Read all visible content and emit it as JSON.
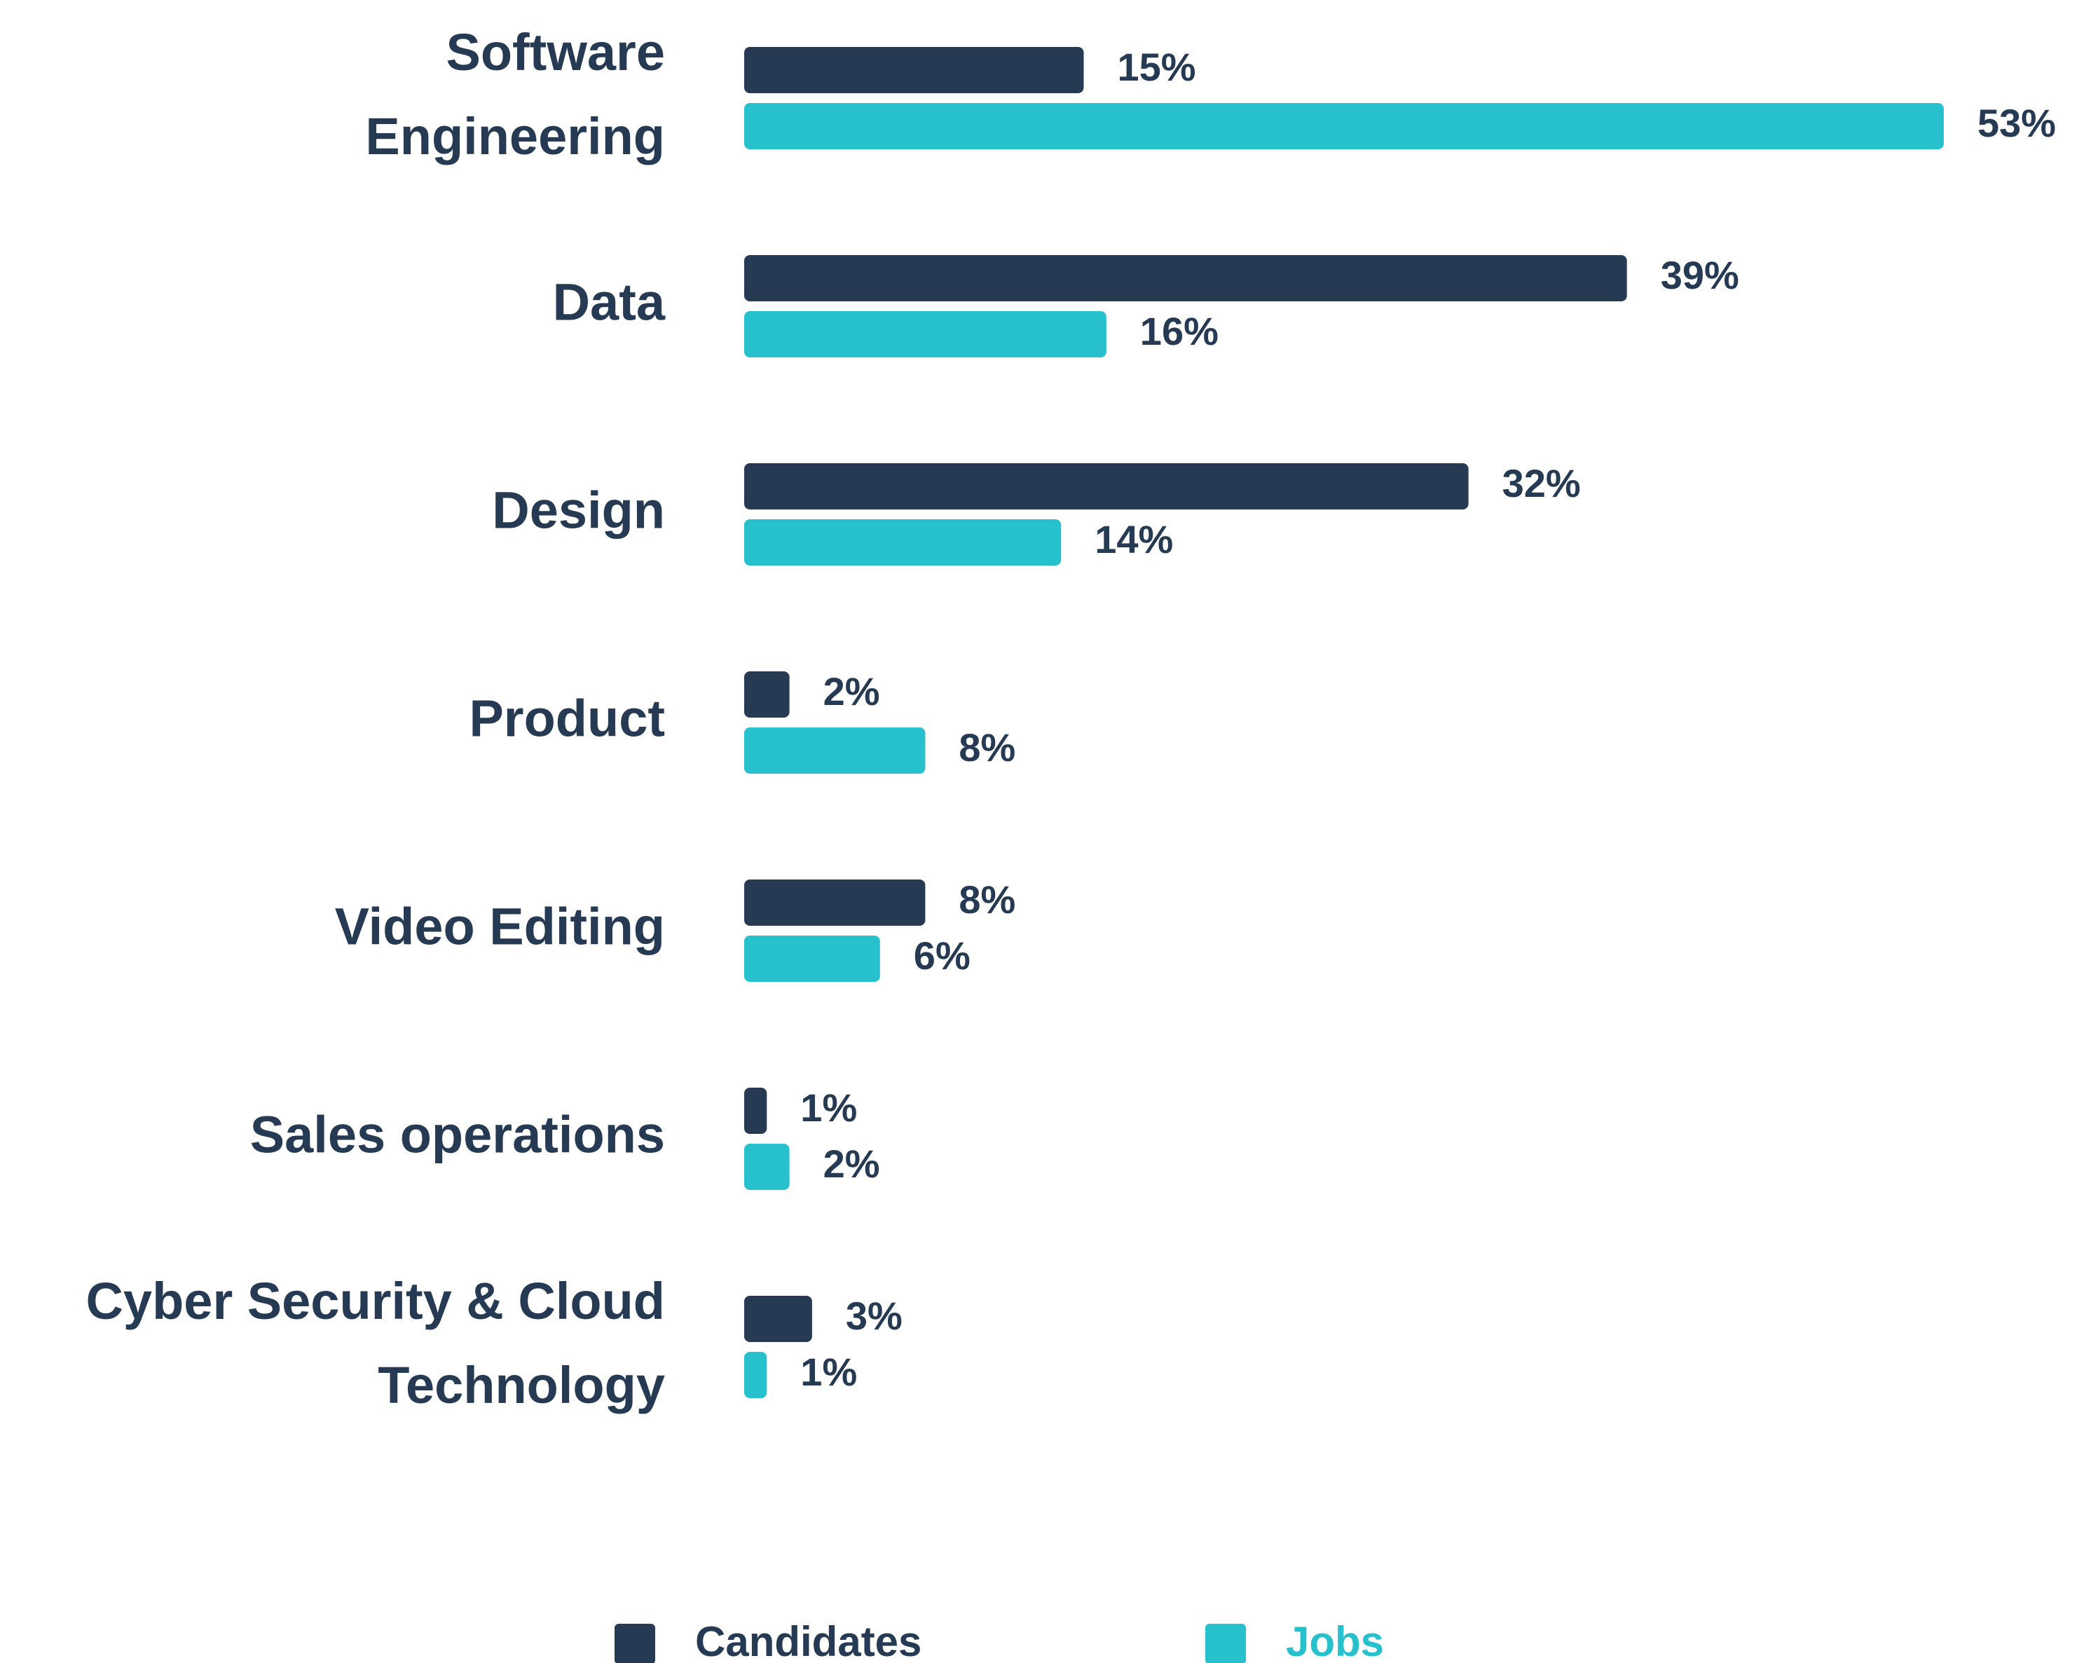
{
  "chart_data": {
    "type": "bar",
    "orientation": "horizontal",
    "categories": [
      "Software Engineering",
      "Data",
      "Design",
      "Product",
      "Video Editing",
      "Sales operations",
      "Cyber Security & Cloud Technology"
    ],
    "series": [
      {
        "name": "Candidates",
        "color": "#263b53",
        "values": [
          15,
          39,
          32,
          2,
          8,
          1,
          3
        ],
        "value_labels": [
          "15%",
          "39%",
          "32%",
          "2%",
          "8%",
          "1%",
          "3%"
        ]
      },
      {
        "name": "Jobs",
        "color": "#26c1cc",
        "values": [
          53,
          16,
          14,
          8,
          6,
          2,
          1
        ],
        "value_labels": [
          "53%",
          "16%",
          "14%",
          "8%",
          "6%",
          "2%",
          "1%"
        ]
      }
    ],
    "legend": "bottom"
  }
}
